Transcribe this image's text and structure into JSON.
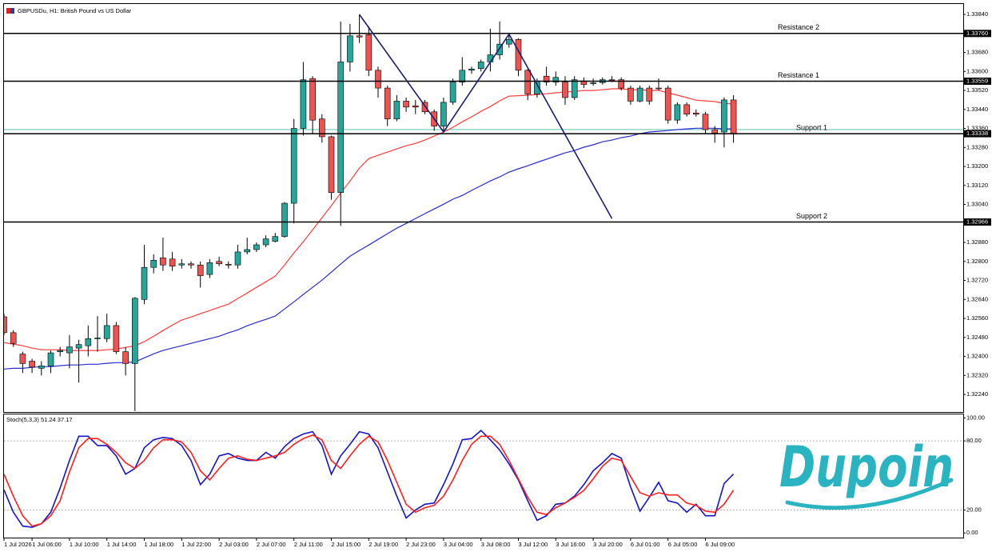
{
  "chart_data": [
    {
      "type": "candlestick",
      "title": "GBPUSDu, H1: British Pound vs US Dollar",
      "categories": [
        "1 Jul 2026",
        null,
        null,
        "1 Jul 06:00",
        null,
        null,
        null,
        "1 Jul 10:00",
        null,
        null,
        null,
        "1 Jul 14:00",
        null,
        null,
        null,
        "1 Jul 18:00",
        null,
        null,
        null,
        "1 Jul 22:00",
        null,
        null,
        null,
        "2 Jul 03:00",
        null,
        null,
        null,
        "2 Jul 07:00",
        null,
        null,
        null,
        "2 Jul 11:00",
        null,
        null,
        null,
        "2 Jul 15:00",
        null,
        null,
        null,
        "2 Jul 19:00",
        null,
        null,
        null,
        "2 Jul 23:00",
        null,
        null,
        null,
        "3 Jul 04:00",
        null,
        null,
        null,
        "3 Jul 08:00",
        null,
        null,
        null,
        "3 Jul 12:00",
        null,
        null,
        null,
        "3 Jul 16:00",
        null,
        null,
        null,
        "3 Jul 20:00",
        null,
        null,
        null,
        "6 Jul 01:00",
        null,
        null,
        null,
        "6 Jul 05:00",
        null,
        null,
        null,
        "6 Jul 09:00",
        null,
        null,
        null
      ],
      "open": [
        1.32567,
        1.325,
        1.3241,
        1.3238,
        1.3235,
        1.3236,
        1.3242,
        1.32415,
        1.32435,
        1.32445,
        1.32475,
        1.32475,
        1.3253,
        1.3242,
        1.3237,
        1.3264,
        1.32775,
        1.32815,
        1.3281,
        1.32785,
        1.3279,
        1.32785,
        1.32745,
        1.328,
        1.32788,
        1.32785,
        1.3284,
        1.3285,
        1.3287,
        1.32885,
        1.32905,
        1.33045,
        1.3336,
        1.3357,
        1.334,
        1.33325,
        1.3309,
        1.3364,
        1.3375,
        1.33755,
        1.33605,
        1.3353,
        1.334,
        1.33475,
        1.33455,
        1.3347,
        1.3343,
        1.3337,
        1.3347,
        1.33555,
        1.33605,
        1.33612,
        1.3364,
        1.3367,
        1.33715,
        1.33735,
        1.33605,
        1.33505,
        1.3358,
        1.33555,
        1.33555,
        1.3349,
        1.3356,
        1.3355,
        1.33553,
        1.33565,
        1.33565,
        1.3353,
        1.33475,
        1.3353,
        1.3353,
        1.3353,
        1.33395,
        1.3346,
        1.33425,
        1.3342,
        1.33355,
        1.33345,
        1.3348
      ],
      "high": [
        1.3258,
        1.3251,
        1.3242,
        1.3239,
        1.3238,
        1.32425,
        1.3244,
        1.3249,
        1.3247,
        1.3253,
        1.3257,
        1.3258,
        1.32545,
        1.3244,
        1.3265,
        1.3287,
        1.3283,
        1.329,
        1.3284,
        1.3281,
        1.328,
        1.328,
        1.3281,
        1.3282,
        1.328,
        1.3287,
        1.329,
        1.3288,
        1.3291,
        1.3292,
        1.3305,
        1.334,
        1.3364,
        1.3358,
        1.3342,
        1.3333,
        1.3381,
        1.338,
        1.3384,
        1.3379,
        1.3362,
        1.3354,
        1.335,
        1.3349,
        1.3348,
        1.3348,
        1.3344,
        1.3349,
        1.3357,
        1.3366,
        1.3362,
        1.3365,
        1.3378,
        1.3381,
        1.3376,
        1.3374,
        1.3361,
        1.3357,
        1.3362,
        1.336,
        1.3358,
        1.3358,
        1.33575,
        1.3357,
        1.33575,
        1.3358,
        1.33575,
        1.3354,
        1.3354,
        1.3354,
        1.3357,
        1.3354,
        1.3347,
        1.3347,
        1.3344,
        1.3343,
        1.3337,
        1.3349,
        1.335
      ],
      "low": [
        1.3249,
        1.3244,
        1.3233,
        1.3233,
        1.3232,
        1.3233,
        1.324,
        1.3235,
        1.3229,
        1.324,
        1.3242,
        1.3246,
        1.3241,
        1.3232,
        1.3217,
        1.3262,
        1.3275,
        1.3276,
        1.3276,
        1.3277,
        1.3277,
        1.3269,
        1.3273,
        1.3278,
        1.3277,
        1.3277,
        1.3283,
        1.3284,
        1.3286,
        1.3288,
        1.329,
        1.3296,
        1.3333,
        1.3334,
        1.333,
        1.3306,
        1.3295,
        1.336,
        1.3372,
        1.3358,
        1.3349,
        1.3337,
        1.3339,
        1.3343,
        1.3342,
        1.3342,
        1.3335,
        1.3335,
        1.3346,
        1.3354,
        1.3359,
        1.336,
        1.336,
        1.3365,
        1.337,
        1.3358,
        1.3348,
        1.3349,
        1.3354,
        1.3354,
        1.3346,
        1.3348,
        1.3353,
        1.3354,
        1.33545,
        1.33555,
        1.3352,
        1.3346,
        1.3347,
        1.3346,
        1.3352,
        1.3338,
        1.3338,
        1.3341,
        1.3341,
        1.3334,
        1.333,
        1.3328,
        1.333
      ],
      "close": [
        1.325,
        1.32455,
        1.3237,
        1.32355,
        1.3236,
        1.32415,
        1.32425,
        1.3244,
        1.3245,
        1.32475,
        1.32478,
        1.3253,
        1.3242,
        1.3237,
        1.32645,
        1.32775,
        1.32805,
        1.32785,
        1.3278,
        1.3279,
        1.32785,
        1.3274,
        1.32795,
        1.3279,
        1.32785,
        1.3284,
        1.3285,
        1.3287,
        1.32895,
        1.32905,
        1.33045,
        1.3336,
        1.33565,
        1.33395,
        1.33325,
        1.3309,
        1.3364,
        1.3375,
        1.33745,
        1.33605,
        1.3353,
        1.334,
        1.33475,
        1.3345,
        1.3345,
        1.3343,
        1.3337,
        1.3347,
        1.33555,
        1.33605,
        1.3361,
        1.3364,
        1.3367,
        1.33715,
        1.33735,
        1.33605,
        1.33505,
        1.3356,
        1.33555,
        1.33575,
        1.3349,
        1.33565,
        1.33545,
        1.33552,
        1.33565,
        1.33562,
        1.3353,
        1.33475,
        1.3353,
        1.33475,
        1.33527,
        1.33395,
        1.3346,
        1.3342,
        1.3342,
        1.33355,
        1.3334,
        1.3348,
        1.33338
      ],
      "up_color": "#26a69a",
      "down_color": "#ef5350",
      "series": [
        {
          "color": "#ff3b3b",
          "values": [
            1.32458,
            1.32452,
            1.32445,
            1.32435,
            1.32428,
            1.32428,
            1.32428,
            1.32425,
            1.32425,
            1.32425,
            1.32425,
            1.32428,
            1.32431,
            1.32438,
            1.32445,
            1.32462,
            1.32485,
            1.32509,
            1.32532,
            1.32553,
            1.32566,
            1.3258,
            1.32593,
            1.32607,
            1.3262,
            1.32644,
            1.32667,
            1.32691,
            1.32714,
            1.32738,
            1.32785,
            1.32836,
            1.32883,
            1.32933,
            1.32984,
            1.33035,
            1.33088,
            1.33139,
            1.33193,
            1.33233,
            1.33247,
            1.3326,
            1.33274,
            1.33287,
            1.33297,
            1.33311,
            1.33328,
            1.33345,
            1.33365,
            1.33388,
            1.33409,
            1.33432,
            1.33452,
            1.33476,
            1.33496,
            1.33498,
            1.335,
            1.33503,
            1.33506,
            1.3351,
            1.33513,
            1.33516,
            1.3352,
            1.3352,
            1.33523,
            1.33527,
            1.33527,
            1.33523,
            1.33523,
            1.3352,
            1.3352,
            1.3351,
            1.335,
            1.3349,
            1.33479,
            1.33476,
            1.33473,
            1.33466,
            1.33463
          ]
        },
        {
          "color": "#2a2ad6",
          "values": [
            1.32347,
            1.3235,
            1.3235,
            1.32354,
            1.32357,
            1.32357,
            1.32361,
            1.32364,
            1.32364,
            1.32367,
            1.32367,
            1.32371,
            1.32374,
            1.32374,
            1.32377,
            1.32394,
            1.32411,
            1.32425,
            1.32435,
            1.32445,
            1.32455,
            1.32465,
            1.32475,
            1.32485,
            1.32499,
            1.32512,
            1.32529,
            1.32543,
            1.32556,
            1.3257,
            1.326,
            1.3263,
            1.32661,
            1.32691,
            1.32721,
            1.32755,
            1.32789,
            1.32822,
            1.32846,
            1.32869,
            1.32893,
            1.32917,
            1.3294,
            1.3296,
            1.32981,
            1.33001,
            1.33021,
            1.33041,
            1.33062,
            1.33078,
            1.33099,
            1.33119,
            1.33139,
            1.33156,
            1.33176,
            1.3319,
            1.33203,
            1.33217,
            1.3323,
            1.33244,
            1.33257,
            1.33267,
            1.33281,
            1.33291,
            1.33304,
            1.33311,
            1.33321,
            1.33328,
            1.33338,
            1.33345,
            1.33348,
            1.33351,
            1.33355,
            1.33358,
            1.33361,
            1.33361,
            1.33361,
            1.33358,
            1.33358
          ]
        }
      ],
      "levels": [
        {
          "name": "Resistance 2",
          "value": 1.3376,
          "label": "1.33760"
        },
        {
          "name": "Resistance 1",
          "value": 1.33559,
          "label": "1.33559"
        },
        {
          "name": "Support 1",
          "value": 1.33338,
          "label": "1.33338"
        },
        {
          "name": "Support 2",
          "value": 1.32966,
          "label": "1.32966"
        }
      ],
      "price_line": {
        "value": 1.33355,
        "color": "#5cc0b0"
      },
      "trendline": {
        "color": "#1c1c70",
        "x": [
          38,
          47,
          54,
          65
        ],
        "values": [
          1.3384,
          1.33345,
          1.33757,
          1.32981
        ]
      },
      "ylim": [
        1.32166,
        1.33884
      ],
      "yticks": [
        {
          "value": 1.3384,
          "label": "1.33840"
        },
        {
          "value": 1.3368,
          "label": "1.33680"
        },
        {
          "value": 1.336,
          "label": "1.33600"
        },
        {
          "value": 1.3352,
          "label": "1.33520"
        },
        {
          "value": 1.3344,
          "label": "1.33440"
        },
        {
          "value": 1.3336,
          "label": "1.33360"
        },
        {
          "value": 1.3328,
          "label": "1.33280"
        },
        {
          "value": 1.332,
          "label": "1.33200"
        },
        {
          "value": 1.3312,
          "label": "1.33120"
        },
        {
          "value": 1.3304,
          "label": "1.33040"
        },
        {
          "value": 1.3288,
          "label": "1.32880"
        },
        {
          "value": 1.328,
          "label": "1.32800"
        },
        {
          "value": 1.3272,
          "label": "1.32720"
        },
        {
          "value": 1.3264,
          "label": "1.32640"
        },
        {
          "value": 1.3256,
          "label": "1.32560"
        },
        {
          "value": 1.3248,
          "label": "1.32480"
        },
        {
          "value": 1.324,
          "label": "1.32400"
        },
        {
          "value": 1.3232,
          "label": "1.32320"
        },
        {
          "value": 1.3224,
          "label": "1.32240"
        }
      ]
    },
    {
      "type": "line",
      "title": "Stoch(5,3,3) 51.24 37.17",
      "series": [
        {
          "color": "#1414c8",
          "values": [
            37.5,
            18,
            6,
            5,
            8,
            18,
            39,
            63,
            84,
            84,
            76,
            76,
            67,
            51,
            56,
            74,
            81,
            83,
            82,
            76,
            63,
            42,
            51,
            67,
            69,
            65,
            63,
            63,
            70,
            65,
            75,
            82,
            86,
            88,
            76,
            51,
            67,
            77,
            88,
            86,
            74,
            53,
            32,
            13,
            20,
            25,
            26,
            42,
            60,
            81,
            82,
            89,
            81,
            72,
            60,
            46,
            28,
            11,
            15,
            25,
            26,
            32,
            42,
            54,
            61,
            69,
            65,
            40,
            19,
            31,
            44,
            28,
            26,
            18,
            25,
            15,
            15,
            43,
            51.24
          ]
        },
        {
          "color": "#ff1e1e",
          "values": [
            51,
            32,
            15,
            6,
            8,
            15,
            28,
            53,
            74,
            82,
            82,
            77,
            70,
            61,
            56,
            63,
            74,
            81,
            81,
            79,
            70,
            54,
            46,
            56,
            65,
            67,
            64,
            63,
            65,
            67,
            70,
            77,
            82,
            85,
            81,
            63,
            56,
            67,
            77,
            84,
            79,
            63,
            44,
            25,
            18,
            22,
            24,
            32,
            46,
            63,
            77,
            84,
            84,
            77,
            63,
            47,
            31,
            18,
            16,
            22,
            26,
            31,
            37,
            47,
            58,
            65,
            63,
            49,
            35,
            32,
            35,
            33,
            33,
            26,
            24,
            19,
            18,
            25,
            37.17
          ]
        }
      ],
      "levels": [
        80,
        20
      ],
      "ylim": [
        -4,
        103
      ],
      "yticks": [
        {
          "value": 100,
          "label": "100.00"
        },
        {
          "value": 80,
          "label": "80.00"
        },
        {
          "value": 20,
          "label": "20.00"
        },
        {
          "value": 0,
          "label": "0.00"
        }
      ]
    }
  ],
  "logo": "Dupoin"
}
